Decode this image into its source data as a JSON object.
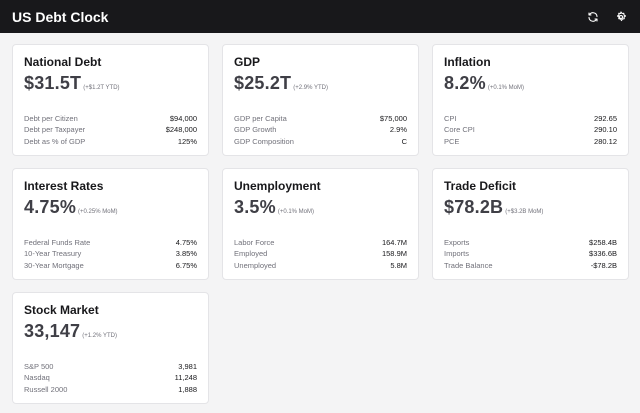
{
  "header": {
    "title": "US Debt Clock",
    "refresh_icon": "refresh-icon",
    "settings_icon": "settings-icon"
  },
  "cards": [
    {
      "title": "National Debt",
      "value": "$31.5T",
      "change": "(+$1.2T YTD)",
      "details": [
        {
          "label": "Debt per Citizen",
          "value": "$94,000"
        },
        {
          "label": "Debt per Taxpayer",
          "value": "$248,000"
        },
        {
          "label": "Debt as % of GDP",
          "value": "125%"
        }
      ]
    },
    {
      "title": "GDP",
      "value": "$25.2T",
      "change": "(+2.9% YTD)",
      "details": [
        {
          "label": "GDP per Capita",
          "value": "$75,000"
        },
        {
          "label": "GDP Growth",
          "value": "2.9%"
        },
        {
          "label": "GDP Composition",
          "value": "C"
        }
      ]
    },
    {
      "title": "Inflation",
      "value": "8.2%",
      "change": "(+0.1% MoM)",
      "details": [
        {
          "label": "CPI",
          "value": "292.65"
        },
        {
          "label": "Core CPI",
          "value": "290.10"
        },
        {
          "label": "PCE",
          "value": "280.12"
        }
      ]
    },
    {
      "title": "Interest Rates",
      "value": "4.75%",
      "change": "(+0.25% MoM)",
      "details": [
        {
          "label": "Federal Funds Rate",
          "value": "4.75%"
        },
        {
          "label": "10-Year Treasury",
          "value": "3.85%"
        },
        {
          "label": "30-Year Mortgage",
          "value": "6.75%"
        }
      ]
    },
    {
      "title": "Unemployment",
      "value": "3.5%",
      "change": "(+0.1% MoM)",
      "details": [
        {
          "label": "Labor Force",
          "value": "164.7M"
        },
        {
          "label": "Employed",
          "value": "158.9M"
        },
        {
          "label": "Unemployed",
          "value": "5.8M"
        }
      ]
    },
    {
      "title": "Trade Deficit",
      "value": "$78.2B",
      "change": "(+$3.2B MoM)",
      "details": [
        {
          "label": "Exports",
          "value": "$258.4B"
        },
        {
          "label": "Imports",
          "value": "$336.6B"
        },
        {
          "label": "Trade Balance",
          "value": "-$78.2B"
        }
      ]
    },
    {
      "title": "Stock Market",
      "value": "33,147",
      "change": "(+1.2% YTD)",
      "details": [
        {
          "label": "S&P 500",
          "value": "3,981"
        },
        {
          "label": "Nasdaq",
          "value": "11,248"
        },
        {
          "label": "Russell 2000",
          "value": "1,888"
        }
      ]
    }
  ]
}
